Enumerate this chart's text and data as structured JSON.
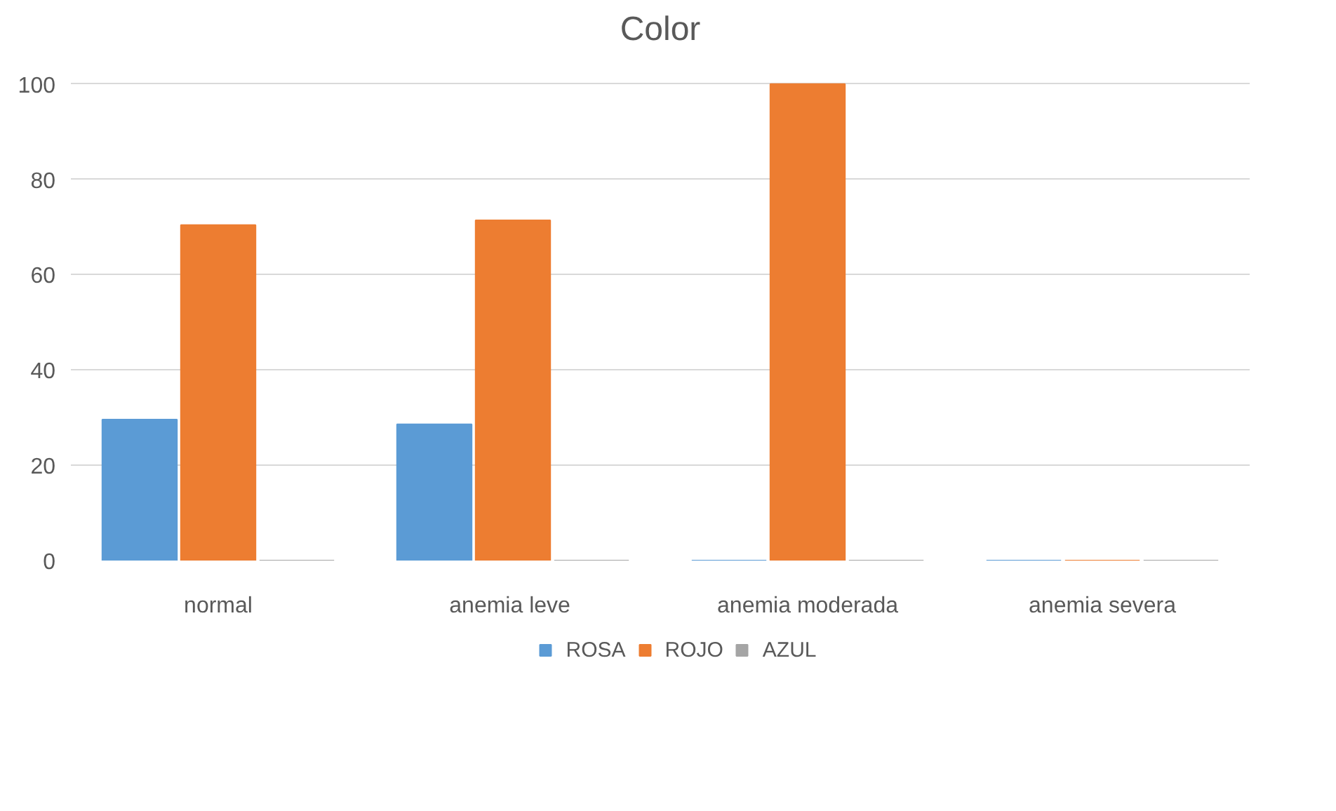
{
  "chart_data": {
    "type": "bar",
    "title": "Color",
    "categories": [
      "normal",
      "anemia  leve",
      "anemia moderada",
      "anemia severa"
    ],
    "series": [
      {
        "name": "ROSA",
        "color": "#5b9bd5",
        "values": [
          29.6,
          28.6,
          0,
          0
        ]
      },
      {
        "name": "ROJO",
        "color": "#ed7d31",
        "values": [
          70.4,
          71.4,
          100,
          0
        ]
      },
      {
        "name": "AZUL",
        "color": "#a5a5a5",
        "values": [
          0,
          0,
          0,
          0
        ]
      }
    ],
    "ylim": [
      0,
      100
    ],
    "yticks": [
      0,
      20,
      40,
      60,
      80,
      100
    ],
    "grid": "y",
    "legend": "bottom"
  }
}
